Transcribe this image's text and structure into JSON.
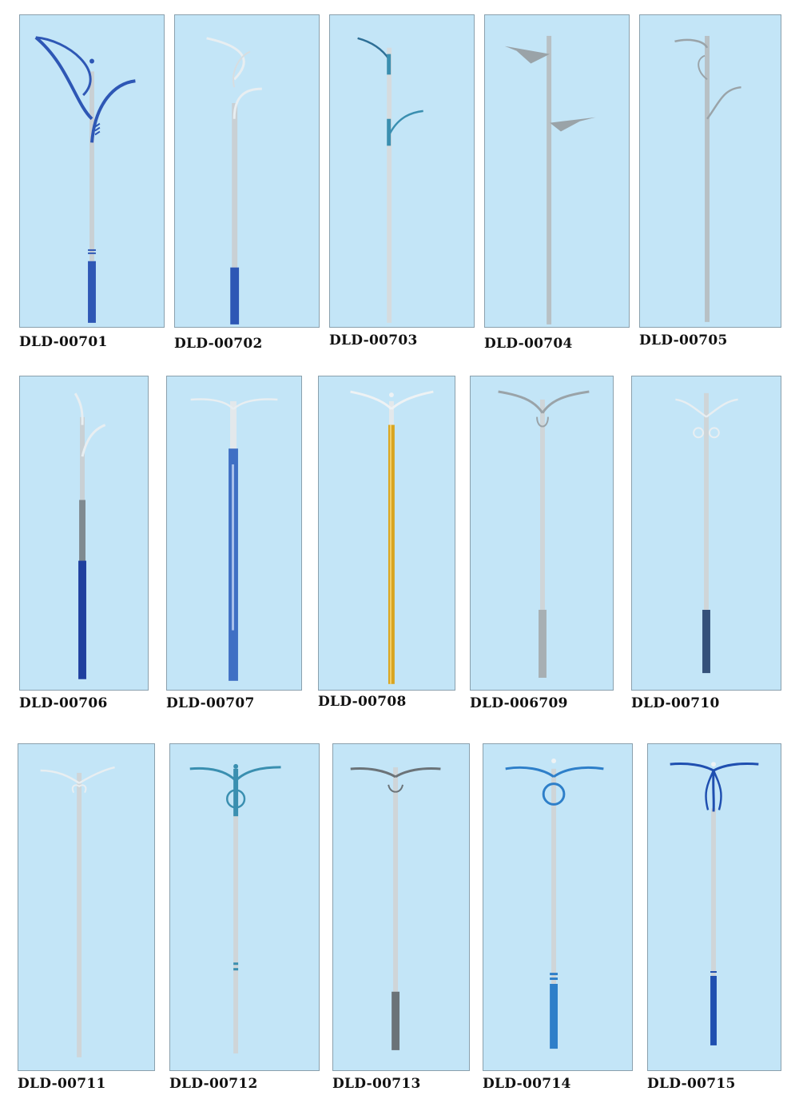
{
  "catalog": {
    "items": [
      {
        "code": "DLD-00701",
        "accent": "#2e57b5",
        "arms": "spiral-double",
        "base": "blue"
      },
      {
        "code": "DLD-00702",
        "accent": "#2e57b5",
        "arms": "crook-double",
        "base": "blue"
      },
      {
        "code": "DLD-00703",
        "accent": "#3a8fb0",
        "arms": "split-double",
        "base": "silver"
      },
      {
        "code": "DLD-00704",
        "accent": "#9aa3a8",
        "arms": "wedge-double",
        "base": "silver"
      },
      {
        "code": "DLD-00705",
        "accent": "#9aa3a8",
        "arms": "crook-double",
        "base": "silver"
      },
      {
        "code": "DLD-00706",
        "accent": "#1f3f9e",
        "arms": "crook-single",
        "base": "blue-grey"
      },
      {
        "code": "DLD-00707",
        "accent": "#3f6fc4",
        "arms": "wing-double",
        "base": "blue"
      },
      {
        "code": "DLD-00708",
        "accent": "#d9a520",
        "arms": "wing-double",
        "base": "gold"
      },
      {
        "code": "DLD-006709",
        "accent": "#9aa3a8",
        "arms": "wing-double",
        "base": "grey"
      },
      {
        "code": "DLD-00710",
        "accent": "#34517a",
        "arms": "scroll-double",
        "base": "dark-grey"
      },
      {
        "code": "DLD-00711",
        "accent": "#9aa3a8",
        "arms": "scroll-double",
        "base": "silver"
      },
      {
        "code": "DLD-00712",
        "accent": "#3a8fb0",
        "arms": "ring-double",
        "base": "silver"
      },
      {
        "code": "DLD-00713",
        "accent": "#6b7378",
        "arms": "wing-double",
        "base": "grey"
      },
      {
        "code": "DLD-00714",
        "accent": "#2e7fc9",
        "arms": "ring-double",
        "base": "blue"
      },
      {
        "code": "DLD-00715",
        "accent": "#1f4fb0",
        "arms": "tulip-double",
        "base": "blue"
      }
    ]
  }
}
